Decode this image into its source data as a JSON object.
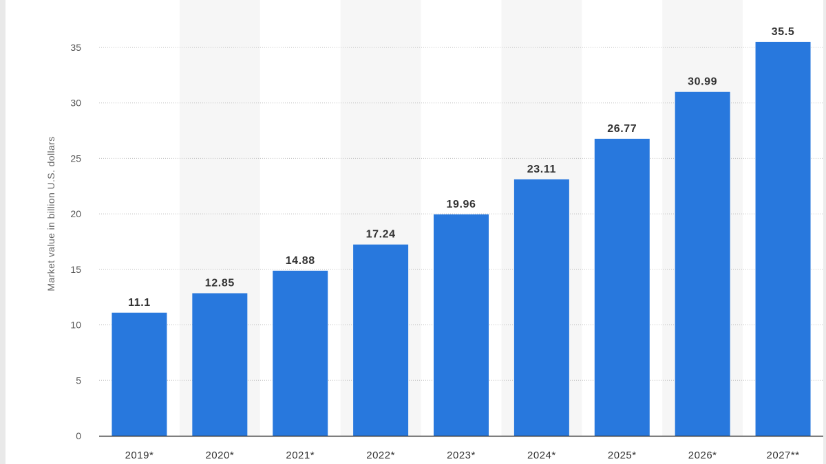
{
  "chart_data": {
    "type": "bar",
    "categories": [
      "2019*",
      "2020*",
      "2021*",
      "2022*",
      "2023*",
      "2024*",
      "2025*",
      "2026*",
      "2027**"
    ],
    "values": [
      11.1,
      12.85,
      14.88,
      17.24,
      19.96,
      23.11,
      26.77,
      30.99,
      35.5
    ],
    "data_labels": [
      "11.1",
      "12.85",
      "14.88",
      "17.24",
      "19.96",
      "23.11",
      "26.77",
      "30.99",
      "35.5"
    ],
    "ylabel": "Market value in billion U.S. dollars",
    "xlabel": "",
    "ylim": [
      0,
      35
    ],
    "yticks": [
      0,
      5,
      10,
      15,
      20,
      25,
      30,
      35
    ],
    "grid": true,
    "bar_color": "#2878dd",
    "alt_band_color": "#f6f6f6"
  }
}
